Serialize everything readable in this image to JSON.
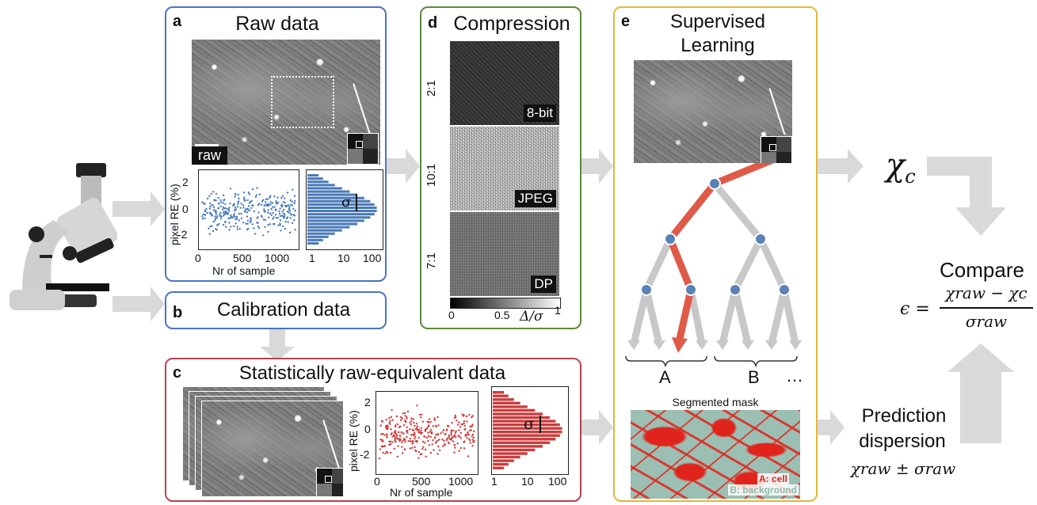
{
  "panel_a": {
    "label": "a",
    "title": "Raw data",
    "img_label": "raw",
    "ylabel": "pixel RE (%)",
    "xlabel": "Nr of sample",
    "sigma": "σ",
    "scatter_xticks": [
      "0",
      "500",
      "1000"
    ],
    "yticks": [
      "2",
      "0",
      "-2"
    ],
    "hist_xticks": [
      "1",
      "10",
      "100"
    ]
  },
  "panel_b": {
    "label": "b",
    "title": "Calibration data"
  },
  "panel_c": {
    "label": "c",
    "title": "Statistically raw-equivalent data",
    "ylabel": "pixel RE (%)",
    "xlabel": "Nr of sample",
    "sigma": "σ",
    "scatter_xticks": [
      "0",
      "500",
      "1000"
    ],
    "yticks": [
      "2",
      "0",
      "-2"
    ],
    "hist_xticks": [
      "1",
      "10",
      "100"
    ]
  },
  "panel_d": {
    "label": "d",
    "title": "Compression",
    "rows": [
      {
        "ratio": "2:1",
        "method": "8-bit"
      },
      {
        "ratio": "10:1",
        "method": "JPEG"
      },
      {
        "ratio": "7:1",
        "method": "DP"
      }
    ],
    "colorbar_ticks": [
      "0",
      "0.5",
      "1"
    ],
    "colorbar_label": "Δ/σ"
  },
  "panel_e": {
    "label": "e",
    "title_line1": "Supervised",
    "title_line2": "Learning",
    "leaf_labels": [
      "A",
      "B",
      "…"
    ],
    "mask_title": "Segmented mask",
    "mask_legend_a": "A: cell",
    "mask_legend_b": "B: background"
  },
  "right": {
    "chi_c": "χc",
    "compare": "Compare",
    "epsilon_lhs": "ϵ =",
    "epsilon_num": "χraw − χc",
    "epsilon_den": "σraw",
    "prediction_line1": "Prediction",
    "prediction_line2": "dispersion",
    "chi_raw_pm": "χraw ± σraw"
  },
  "colors": {
    "blue_border": "#4a74c4",
    "red_border": "#b84250",
    "green_border": "#5e8a3a",
    "gold_border": "#e3b63a",
    "arrow_gray": "#d9d9d9",
    "scatter_blue": "#4a7ab8",
    "scatter_red": "#cc3b3b",
    "tree_red": "#e05a48",
    "node_blue": "#5b82b8"
  }
}
